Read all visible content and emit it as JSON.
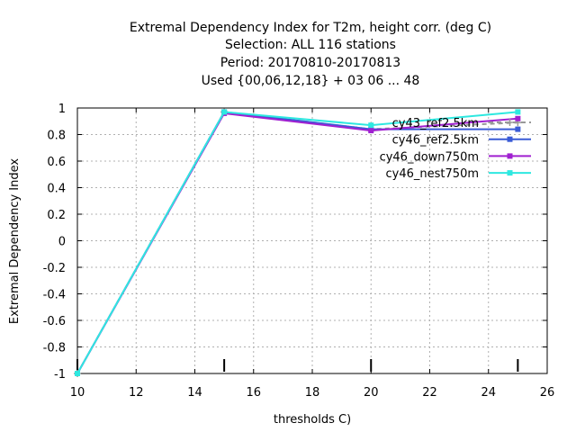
{
  "chart_data": {
    "type": "line",
    "title_lines": [
      "Extremal Dependency Index  for T2m, height corr. (deg C)",
      "Selection: ALL    116 stations",
      "Period: 20170810-20170813",
      "Used {00,06,12,18} + 03 06 ... 48"
    ],
    "xlabel": "thresholds C)",
    "ylabel": "Extremal Dependency Index",
    "xlim": [
      10,
      26
    ],
    "ylim": [
      -1,
      1
    ],
    "xticks": [
      10,
      12,
      14,
      16,
      18,
      20,
      22,
      24,
      26
    ],
    "yticks": [
      -1,
      -0.8,
      -0.6,
      -0.4,
      -0.2,
      0,
      0.2,
      0.4,
      0.6,
      0.8,
      1
    ],
    "grid": true,
    "legend_position": "top-right",
    "threshold_markers": [
      10,
      15,
      20,
      25
    ],
    "x": [
      10,
      15,
      20,
      25
    ],
    "series": [
      {
        "name": "cy43_ref2.5km",
        "color": "#999999",
        "dashed": true,
        "marker": "plus",
        "values": [
          -1.0,
          0.97,
          0.84,
          0.89
        ]
      },
      {
        "name": "cy46_ref2.5km",
        "color": "#3a5bd6",
        "dashed": false,
        "marker": "square",
        "values": [
          -1.0,
          0.97,
          0.84,
          0.84
        ]
      },
      {
        "name": "cy46_down750m",
        "color": "#a020d0",
        "dashed": false,
        "marker": "square",
        "values": [
          -1.0,
          0.96,
          0.83,
          0.92
        ]
      },
      {
        "name": "cy46_nest750m",
        "color": "#2ee8e0",
        "dashed": false,
        "marker": "square",
        "values": [
          -1.0,
          0.97,
          0.87,
          0.97
        ]
      }
    ]
  }
}
